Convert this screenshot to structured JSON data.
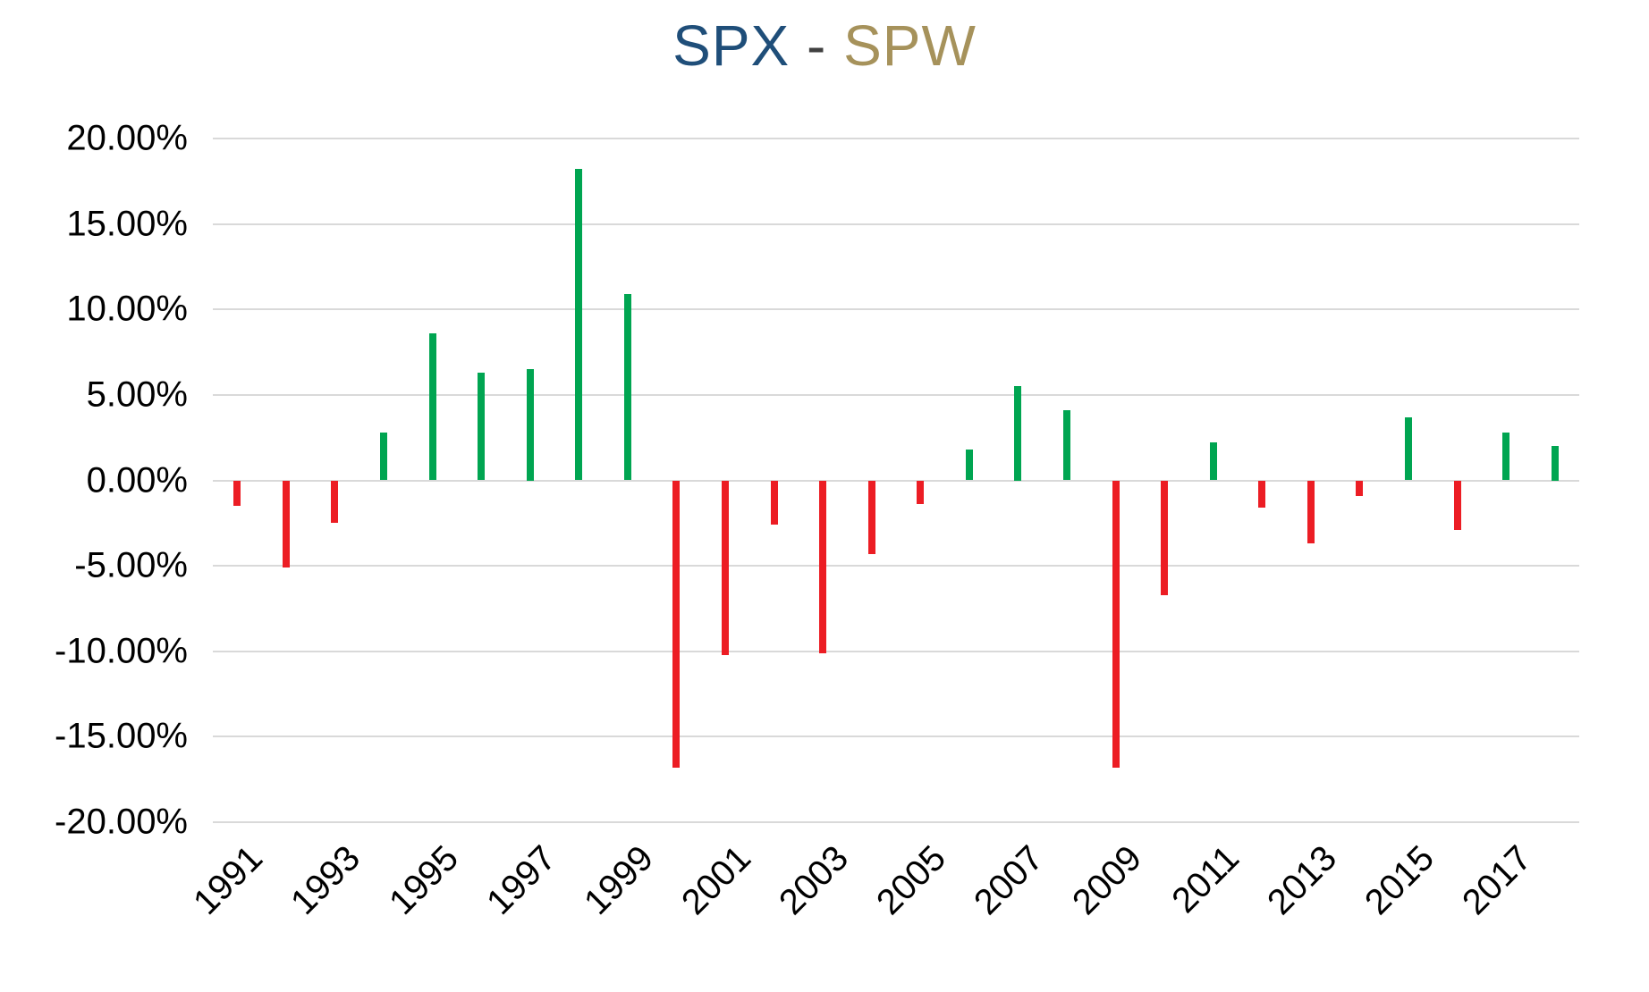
{
  "title": {
    "series1": "SPX",
    "separator": " - ",
    "series2": "SPW",
    "series1_color": "#1f4e79",
    "series2_color": "#a6925b",
    "separator_color": "#404040"
  },
  "chart_data": {
    "type": "bar",
    "title": "SPX - SPW",
    "x": [
      "1991",
      "1992",
      "1993",
      "1994",
      "1995",
      "1996",
      "1997",
      "1998",
      "1999",
      "2000",
      "2001",
      "2002",
      "2003",
      "2004",
      "2005",
      "2006",
      "2007",
      "2008",
      "2009",
      "2010",
      "2011",
      "2012",
      "2013",
      "2014",
      "2015",
      "2016",
      "2017",
      "2018"
    ],
    "values": [
      -1.5,
      -5.1,
      -2.5,
      2.8,
      8.6,
      6.3,
      6.5,
      18.2,
      10.9,
      -16.8,
      -10.2,
      -2.6,
      -10.1,
      -4.3,
      -1.4,
      1.8,
      5.5,
      4.1,
      -16.8,
      -6.7,
      2.2,
      -1.6,
      -3.7,
      -0.9,
      3.7,
      -2.9,
      2.8,
      2.0
    ],
    "positive_color": "#00a551",
    "negative_color": "#ec1d24",
    "grid_color": "#d9d9d9",
    "ylim": [
      -20,
      20
    ],
    "ytick_step": 5,
    "ytick_labels": [
      "20.00%",
      "15.00%",
      "10.00%",
      "5.00%",
      "0.00%",
      "-5.00%",
      "-10.00%",
      "-15.00%",
      "-20.00%"
    ],
    "xtick_labels": [
      "1991",
      "1993",
      "1995",
      "1997",
      "1999",
      "2001",
      "2003",
      "2005",
      "2007",
      "2009",
      "2011",
      "2013",
      "2015",
      "2017"
    ],
    "xtick_every": 2,
    "grid": true,
    "legend": "none",
    "xlabel": "",
    "ylabel": ""
  }
}
